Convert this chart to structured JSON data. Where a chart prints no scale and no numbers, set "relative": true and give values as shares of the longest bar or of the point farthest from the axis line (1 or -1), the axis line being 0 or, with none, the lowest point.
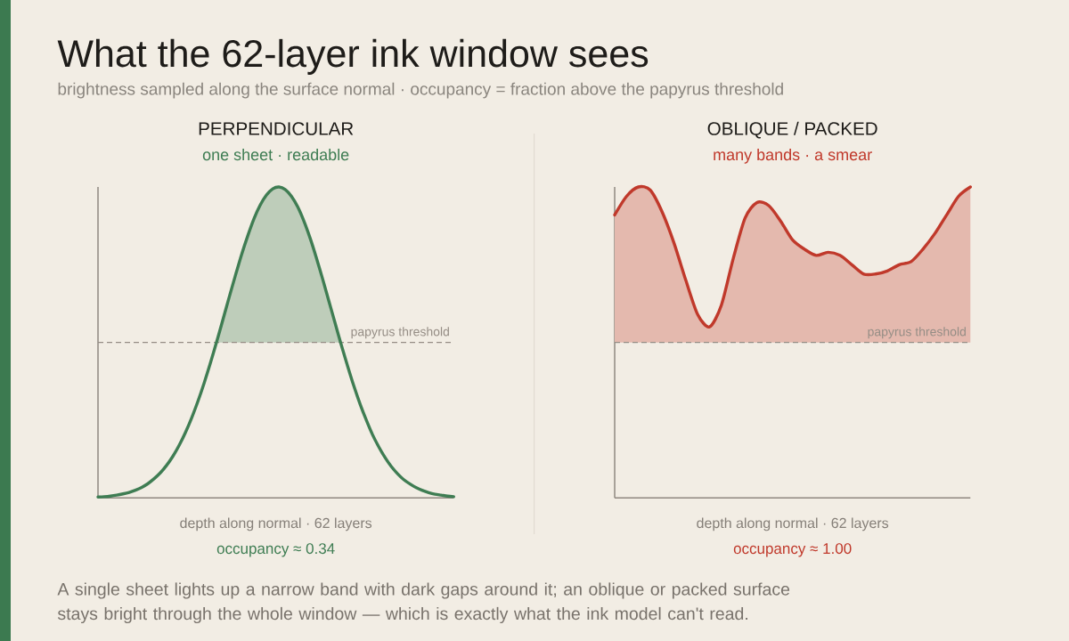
{
  "chart_data": [
    {
      "type": "other",
      "title": "What the 62-layer ink window sees",
      "subtitle": "brightness sampled along the surface normal · occupancy = fraction above the papyrus threshold",
      "annotations": [
        "A single sheet lights up a narrow band with dark gaps around it; an oblique or packed surface stays bright through the whole window — which is exactly what the ink model can't read."
      ]
    },
    {
      "type": "line",
      "title": "PERPENDICULAR",
      "subtitle": "one sheet · readable",
      "xlabel": "depth along normal · 62 layers",
      "annotations": [
        "occupancy ≈ 0.34"
      ],
      "relative": true,
      "categories": [
        null,
        null,
        null,
        null,
        null,
        null,
        null,
        null,
        null,
        null,
        null,
        null,
        null,
        null,
        null,
        null,
        null,
        null,
        null,
        null,
        null,
        null,
        null,
        null,
        null,
        null,
        null,
        null,
        null,
        null,
        null,
        null,
        null,
        null,
        null,
        null,
        null,
        null,
        null,
        null,
        null,
        null,
        null,
        null,
        null,
        null,
        null,
        null,
        null,
        null,
        null,
        null,
        null,
        null,
        null,
        null,
        null,
        null
      ],
      "series": [
        {
          "color": "#3f7d53",
          "values": [
            0.003,
            0.004,
            0.006,
            0.009,
            0.013,
            0.018,
            0.025,
            0.034,
            0.046,
            0.062,
            0.081,
            0.105,
            0.134,
            0.169,
            0.21,
            0.257,
            0.31,
            0.369,
            0.433,
            0.501,
            0.572,
            0.644,
            0.714,
            0.782,
            0.843,
            0.898,
            0.942,
            0.974,
            0.994,
            1.0,
            0.992,
            0.97,
            0.936,
            0.89,
            0.835,
            0.772,
            0.704,
            0.633,
            0.562,
            0.491,
            0.424,
            0.36,
            0.302,
            0.25,
            0.203,
            0.164,
            0.13,
            0.101,
            0.078,
            0.059,
            0.045,
            0.033,
            0.024,
            0.017,
            0.012,
            0.009,
            0.006,
            0.004
          ],
          "lower": [
            null,
            null,
            null,
            null,
            null,
            null,
            null,
            null,
            null,
            null,
            null,
            null,
            null,
            null,
            null,
            null,
            null,
            null,
            null,
            0.5,
            0.5,
            0.5,
            0.5,
            0.5,
            0.5,
            0.5,
            0.5,
            0.5,
            0.5,
            0.5,
            0.5,
            0.5,
            0.5,
            0.5,
            0.5,
            0.5,
            0.5,
            0.5,
            0.5,
            0.5,
            null,
            null,
            null,
            null,
            null,
            null,
            null,
            null,
            null,
            null,
            null,
            null,
            null,
            null,
            null,
            null,
            null,
            null
          ],
          "upper": [
            null,
            null,
            null,
            null,
            null,
            null,
            null,
            null,
            null,
            null,
            null,
            null,
            null,
            null,
            null,
            null,
            null,
            null,
            null,
            0.501,
            0.572,
            0.644,
            0.714,
            0.782,
            0.843,
            0.898,
            0.942,
            0.974,
            0.994,
            1.0,
            0.992,
            0.97,
            0.936,
            0.89,
            0.835,
            0.772,
            0.704,
            0.633,
            0.562,
            0.5,
            null,
            null,
            null,
            null,
            null,
            null,
            null,
            null,
            null,
            null,
            null,
            null,
            null,
            null,
            null,
            null,
            null,
            null
          ]
        }
      ],
      "ref_lines": [
        {
          "axis": "y",
          "value": 0.5,
          "label": "papyrus threshold",
          "line_style": "dashed",
          "color": "#958d85"
        }
      ]
    },
    {
      "type": "line",
      "title": "OBLIQUE / PACKED",
      "subtitle": "many bands · a smear",
      "xlabel": "depth along normal · 62 layers",
      "annotations": [
        "occupancy ≈ 1.00"
      ],
      "relative": true,
      "categories": [
        null,
        null,
        null,
        null,
        null,
        null,
        null,
        null,
        null,
        null,
        null,
        null,
        null,
        null,
        null,
        null,
        null,
        null,
        null,
        null,
        null,
        null,
        null,
        null,
        null,
        null,
        null,
        null,
        null,
        null,
        null
      ],
      "series": [
        {
          "color": "#c0392b",
          "values": [
            0.91,
            0.97,
            1.0,
            0.99,
            0.92,
            0.82,
            0.7,
            0.59,
            0.55,
            0.62,
            0.77,
            0.9,
            0.95,
            0.94,
            0.89,
            0.83,
            0.8,
            0.78,
            0.79,
            0.78,
            0.75,
            0.72,
            0.72,
            0.73,
            0.75,
            0.76,
            0.8,
            0.85,
            0.91,
            0.97,
            1.0
          ],
          "lower": [
            0.5,
            0.5,
            0.5,
            0.5,
            0.5,
            0.5,
            0.5,
            0.5,
            0.5,
            0.5,
            0.5,
            0.5,
            0.5,
            0.5,
            0.5,
            0.5,
            0.5,
            0.5,
            0.5,
            0.5,
            0.5,
            0.5,
            0.5,
            0.5,
            0.5,
            0.5,
            0.5,
            0.5,
            0.5,
            0.5,
            0.5
          ],
          "upper": [
            0.91,
            0.97,
            1.0,
            0.99,
            0.92,
            0.82,
            0.7,
            0.59,
            0.55,
            0.62,
            0.77,
            0.9,
            0.95,
            0.94,
            0.89,
            0.83,
            0.8,
            0.78,
            0.79,
            0.78,
            0.75,
            0.72,
            0.72,
            0.73,
            0.75,
            0.76,
            0.8,
            0.85,
            0.91,
            0.97,
            1.0
          ]
        }
      ],
      "ref_lines": [
        {
          "axis": "y",
          "value": 0.5,
          "label": "papyrus threshold",
          "line_style": "dashed",
          "color": "#958d85"
        }
      ]
    }
  ]
}
